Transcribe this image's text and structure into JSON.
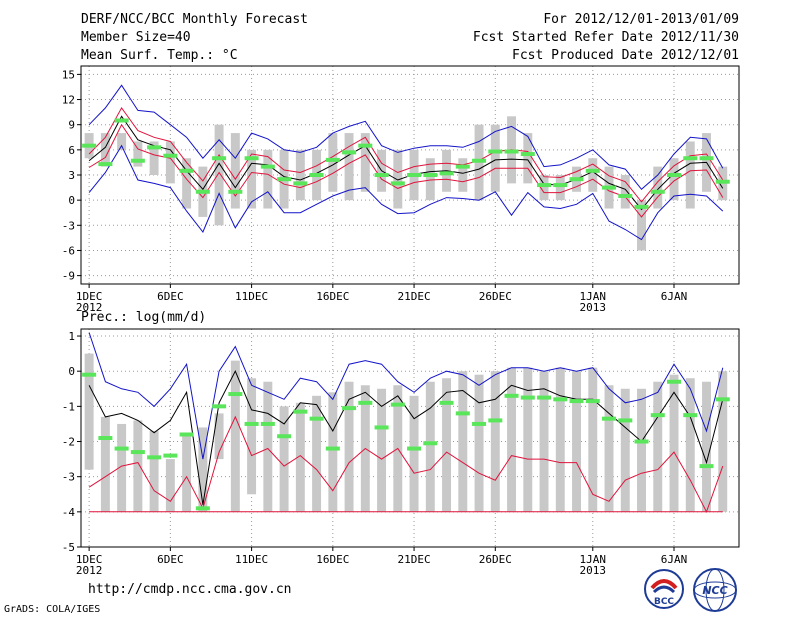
{
  "header": {
    "title": "DERF/NCC/BCC Monthly Forecast",
    "member": "Member Size=40",
    "variable": "Mean Surf. Temp.: °C",
    "period": "For 2012/12/01-2013/01/09",
    "started": "Fcst Started Refer Date 2012/11/30",
    "produced": "Fcst Produced Date 2012/12/01"
  },
  "footer": {
    "url": "http://cmdp.ncc.cma.gov.cn",
    "credit": "GrADS: COLA/IGES",
    "logo_bcc": "BCC",
    "logo_ncc": "NCC"
  },
  "colors": {
    "bar": "#c8c8c8",
    "median": "#5ae65a",
    "mean": "#000000",
    "ci": "#e0143c",
    "envelope": "#1414c8"
  },
  "chart_data": [
    {
      "type": "line",
      "title": "Mean Surf. Temp.: °C",
      "x": [
        1,
        2,
        3,
        4,
        5,
        6,
        7,
        8,
        9,
        10,
        11,
        12,
        13,
        14,
        15,
        16,
        17,
        18,
        19,
        20,
        21,
        22,
        23,
        24,
        25,
        26,
        27,
        28,
        29,
        30,
        31,
        32,
        33,
        34,
        35,
        36,
        37,
        38,
        39,
        40
      ],
      "ylim": [
        -10,
        16
      ],
      "yticks": [
        15,
        12,
        9,
        6,
        3,
        0,
        -3,
        -6,
        -9
      ],
      "yticklabels": [
        "15",
        "12",
        "9",
        "6",
        "3",
        "0",
        "-3",
        "-6",
        "-9"
      ],
      "xticks": [
        {
          "day": 1,
          "label": "1DEC",
          "sub": "2012"
        },
        {
          "day": 6,
          "label": "6DEC",
          "sub": ""
        },
        {
          "day": 11,
          "label": "11DEC",
          "sub": ""
        },
        {
          "day": 16,
          "label": "16DEC",
          "sub": ""
        },
        {
          "day": 21,
          "label": "21DEC",
          "sub": ""
        },
        {
          "day": 26,
          "label": "26DEC",
          "sub": ""
        },
        {
          "day": 32,
          "label": "1JAN",
          "sub": "2013"
        },
        {
          "day": 37,
          "label": "6JAN",
          "sub": ""
        }
      ],
      "bars": {
        "low": [
          5,
          4,
          6,
          4,
          3,
          2,
          -1,
          -2,
          -3,
          -1,
          -1,
          -1,
          -1,
          0,
          0,
          1,
          0,
          1,
          1,
          -1,
          0,
          0,
          1,
          1,
          0,
          1,
          2,
          2,
          0,
          0,
          1,
          1,
          -1,
          -1,
          -6,
          -1,
          0,
          -1,
          1,
          0
        ],
        "high": [
          8,
          8,
          8,
          7,
          7,
          7,
          5,
          4,
          9,
          8,
          6,
          6,
          6,
          6,
          6,
          8,
          8,
          8,
          6,
          6,
          6,
          5,
          6,
          5,
          9,
          9,
          10,
          8,
          3,
          3,
          4,
          5,
          4,
          3,
          0,
          4,
          5,
          7,
          8,
          4
        ]
      },
      "series": [
        {
          "name": "median",
          "values": [
            6.5,
            4.3,
            9.5,
            4.7,
            6.3,
            5.3,
            3.5,
            1,
            5,
            1,
            5,
            4,
            2.5,
            2,
            3,
            4.8,
            5.7,
            6.5,
            3,
            2,
            3,
            3,
            3.2,
            4,
            4.7,
            5.8,
            5.8,
            5.5,
            1.8,
            1.8,
            2.5,
            3.5,
            1.5,
            0.5,
            -0.8,
            1,
            3,
            5,
            5,
            2.2
          ]
        },
        {
          "name": "mean",
          "values": [
            4.7,
            6.3,
            10,
            7.2,
            6.5,
            6,
            3.5,
            1.3,
            4.4,
            1.5,
            4.4,
            4.2,
            2.8,
            2.4,
            3.2,
            4.2,
            5.4,
            6.5,
            3.5,
            2.4,
            3.1,
            3.4,
            3.5,
            3.2,
            3.7,
            4.8,
            4.9,
            4.8,
            1.9,
            1.8,
            2.5,
            3.4,
            2,
            1.3,
            -1.1,
            1.3,
            3.2,
            4.4,
            4.5,
            1.4
          ]
        },
        {
          "name": "ci_upper",
          "values": [
            5.5,
            7.5,
            11,
            8.3,
            7.5,
            7,
            4.5,
            2.3,
            5.4,
            2.5,
            5.5,
            5.2,
            3.6,
            3.3,
            4.1,
            5.2,
            6.4,
            7.5,
            4.4,
            3.3,
            4,
            4.3,
            4.4,
            4.2,
            4.7,
            5.8,
            6,
            5.8,
            2.8,
            2.7,
            3.4,
            4.3,
            2.9,
            2.2,
            -0.2,
            2.2,
            4.1,
            5.3,
            5.5,
            2.4
          ]
        },
        {
          "name": "ci_lower",
          "values": [
            3.9,
            5.1,
            9,
            6.1,
            5.4,
            5,
            2.5,
            0.3,
            3.3,
            0.5,
            3.3,
            3.1,
            1.9,
            1.5,
            2.2,
            3.2,
            4.4,
            5.4,
            2.5,
            1.4,
            2.1,
            2.4,
            2.5,
            2.2,
            2.7,
            3.8,
            3.8,
            3.8,
            0.9,
            0.9,
            1.6,
            2.5,
            1.1,
            0.4,
            -2,
            0.4,
            2.3,
            3.5,
            3.6,
            0.3
          ]
        },
        {
          "name": "env_upper",
          "values": [
            9,
            11,
            13.7,
            10.7,
            10.5,
            9,
            7.5,
            5,
            7.2,
            5,
            8,
            7.3,
            6,
            5.7,
            6.3,
            8,
            8.8,
            9.4,
            6.5,
            5.7,
            6.2,
            6.5,
            6.5,
            6.3,
            7,
            8.2,
            8.8,
            7.6,
            4,
            4.2,
            5,
            6,
            4.2,
            3.7,
            1.3,
            3,
            5.5,
            7.5,
            7.3,
            3.8
          ]
        },
        {
          "name": "env_lower",
          "values": [
            0.9,
            3.3,
            6.5,
            2.4,
            2,
            1.5,
            -1.3,
            -3.8,
            0.8,
            -3.3,
            -0.2,
            1,
            -1.5,
            -1.5,
            -0.5,
            0.5,
            1.2,
            1.5,
            -0.5,
            -1.6,
            -1.5,
            -0.5,
            0.3,
            0.2,
            0,
            1,
            -1.8,
            0.9,
            -0.8,
            -1,
            -0.5,
            0.8,
            -2.5,
            -3.5,
            -4.7,
            -1.5,
            0.5,
            0.7,
            0.5,
            -1.3
          ]
        }
      ]
    },
    {
      "type": "line",
      "title": "Prec.: log(mm/d)",
      "x": [
        1,
        2,
        3,
        4,
        5,
        6,
        7,
        8,
        9,
        10,
        11,
        12,
        13,
        14,
        15,
        16,
        17,
        18,
        19,
        20,
        21,
        22,
        23,
        24,
        25,
        26,
        27,
        28,
        29,
        30,
        31,
        32,
        33,
        34,
        35,
        36,
        37,
        38,
        39,
        40
      ],
      "ylim": [
        -5,
        1.2
      ],
      "yticks": [
        1,
        0,
        -1,
        -2,
        -3,
        -4,
        -5
      ],
      "yticklabels": [
        "1",
        "0",
        "-1",
        "-2",
        "-3",
        "-4",
        "-5"
      ],
      "xticks": [
        {
          "day": 1,
          "label": "1DEC",
          "sub": "2012"
        },
        {
          "day": 6,
          "label": "6DEC",
          "sub": ""
        },
        {
          "day": 11,
          "label": "11DEC",
          "sub": ""
        },
        {
          "day": 16,
          "label": "16DEC",
          "sub": ""
        },
        {
          "day": 21,
          "label": "21DEC",
          "sub": ""
        },
        {
          "day": 26,
          "label": "26DEC",
          "sub": ""
        },
        {
          "day": 32,
          "label": "1JAN",
          "sub": "2013"
        },
        {
          "day": 37,
          "label": "6JAN",
          "sub": ""
        }
      ],
      "bars": {
        "low": [
          -2.8,
          -4,
          -4,
          -4,
          -4,
          -4,
          -4,
          -4,
          -2.5,
          -4,
          -3.5,
          -4,
          -4,
          -4,
          -4,
          -4,
          -4,
          -4,
          -4,
          -4,
          -4,
          -4,
          -4,
          -4,
          -4,
          -4,
          -4,
          -4,
          -4,
          -4,
          -4,
          -4,
          -4,
          -4,
          -4,
          -4,
          -4,
          -4,
          -4,
          -4
        ],
        "high": [
          0.5,
          -1.3,
          -1.5,
          -1.4,
          -1.7,
          -2.5,
          -1.8,
          -1.6,
          -1.2,
          0.3,
          -0.2,
          -0.3,
          -1,
          -0.9,
          -0.7,
          -0.6,
          -0.3,
          -0.4,
          -0.5,
          -0.4,
          -0.7,
          -0.3,
          -0.2,
          0,
          -0.1,
          0,
          0.1,
          0.1,
          0,
          0.1,
          0,
          0.1,
          -0.4,
          -0.5,
          -0.5,
          -0.3,
          -0.1,
          -0.2,
          -0.3,
          0
        ]
      },
      "series": [
        {
          "name": "median",
          "values": [
            -0.1,
            -1.9,
            -2.2,
            -2.3,
            -2.45,
            -2.4,
            -1.8,
            -3.9,
            -1,
            -0.65,
            -1.5,
            -1.5,
            -1.85,
            -1.15,
            -1.35,
            -2.2,
            -1.05,
            -0.9,
            -1.6,
            -0.95,
            -2.2,
            -2.05,
            -0.9,
            -1.2,
            -1.5,
            -1.4,
            -0.7,
            -0.75,
            -0.75,
            -0.8,
            -0.85,
            -0.85,
            -1.35,
            -1.4,
            -2,
            -1.25,
            -0.3,
            -1.25,
            -2.7,
            -0.8
          ]
        },
        {
          "name": "mean",
          "values": [
            -0.4,
            -1.3,
            -1.2,
            -1.4,
            -1.75,
            -1.4,
            -0.6,
            -3.8,
            -0.9,
            0,
            -1.1,
            -1.2,
            -1.5,
            -0.9,
            -0.95,
            -1.7,
            -0.8,
            -0.6,
            -1,
            -0.7,
            -1.35,
            -1.05,
            -0.6,
            -0.55,
            -0.9,
            -0.8,
            -0.4,
            -0.55,
            -0.5,
            -0.7,
            -0.8,
            -0.8,
            -1.2,
            -1.6,
            -2,
            -1.3,
            -0.6,
            -1.3,
            -2.6,
            -0.8
          ]
        },
        {
          "name": "ci_upper",
          "values": [
            -4,
            -4,
            -4,
            -4,
            -4,
            -4,
            -4,
            -4,
            -4,
            -4,
            -4,
            -4,
            -4,
            -4,
            -4,
            -4,
            -4,
            -4,
            -4,
            -4,
            -4,
            -4,
            -4,
            -4,
            -4,
            -4,
            -4,
            -4,
            -4,
            -4,
            -4,
            -4,
            -4,
            -4,
            -4,
            -4,
            -4,
            -4,
            -4,
            -4
          ]
        },
        {
          "name": "ci_lower",
          "values": [
            -3.3,
            -3,
            -2.7,
            -2.6,
            -3.4,
            -3.7,
            -3,
            -3.9,
            -2.3,
            -1.3,
            -2.4,
            -2.2,
            -2.7,
            -2.4,
            -2.8,
            -3.4,
            -2.6,
            -2.2,
            -2.5,
            -2.2,
            -2.9,
            -2.8,
            -2.3,
            -2.6,
            -2.9,
            -3.1,
            -2.4,
            -2.5,
            -2.5,
            -2.6,
            -2.6,
            -3.5,
            -3.7,
            -3.1,
            -2.9,
            -2.8,
            -2.3,
            -3.1,
            -4,
            -2.7
          ]
        },
        {
          "name": "env_upper",
          "values": [
            1.1,
            -0.3,
            -0.5,
            -0.6,
            -1,
            -0.5,
            0.2,
            -2.5,
            0,
            0.7,
            -0.4,
            -0.6,
            -0.8,
            -0.2,
            -0.3,
            -0.8,
            0.2,
            0.3,
            0.2,
            -0.3,
            -0.6,
            -0.2,
            0,
            -0.1,
            -0.4,
            -0.1,
            0.1,
            0.1,
            0,
            0.1,
            0,
            0.1,
            -0.5,
            -0.9,
            -0.8,
            -0.6,
            0.2,
            -0.5,
            -1.7,
            0.1
          ]
        }
      ]
    }
  ]
}
